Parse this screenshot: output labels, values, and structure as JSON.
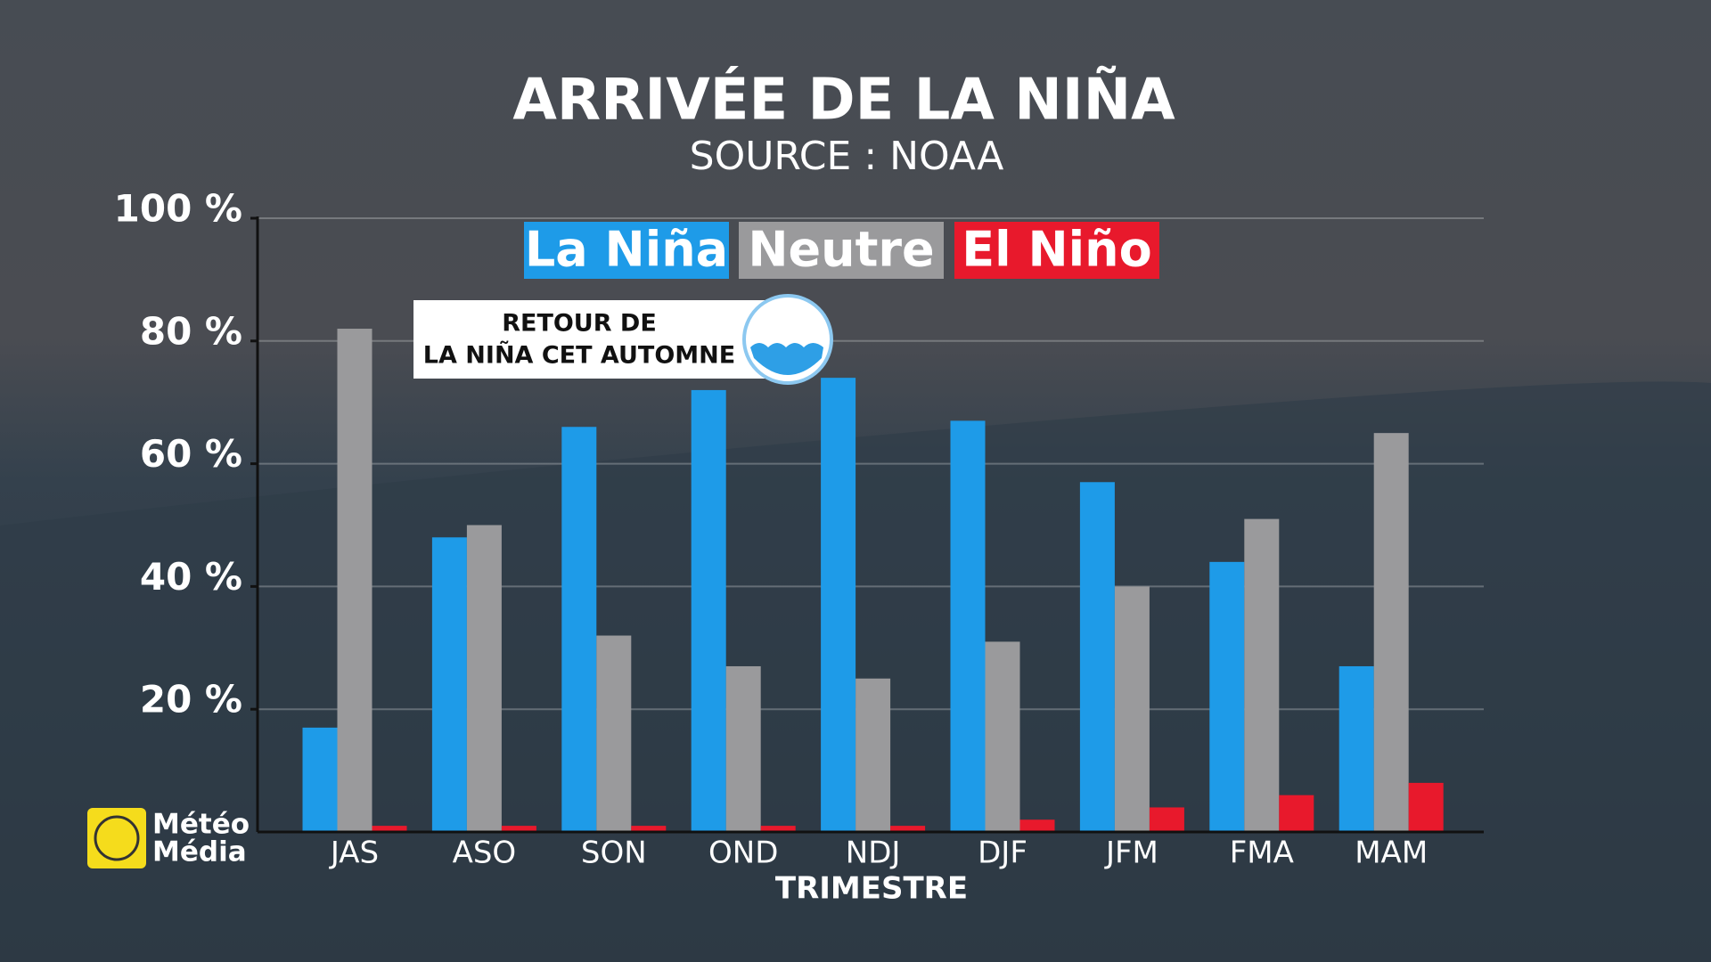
{
  "chart_data": {
    "type": "bar",
    "title": "ARRIVÉE DE LA NIÑA",
    "subtitle": "SOURCE : NOAA",
    "x_label": "TRIMESTRE",
    "annotation": [
      "RETOUR DE",
      "LA NIÑA CET AUTOMNE"
    ],
    "categories": [
      "JAS",
      "ASO",
      "SON",
      "OND",
      "NDJ",
      "DJF",
      "JFM",
      "FMA",
      "MAM"
    ],
    "series": [
      {
        "name": "La Niña",
        "color": "#1e9be8",
        "values": [
          17,
          48,
          66,
          72,
          74,
          67,
          57,
          44,
          27
        ]
      },
      {
        "name": "Neutre",
        "color": "#9a9a9c",
        "values": [
          82,
          50,
          32,
          27,
          25,
          31,
          40,
          51,
          65
        ]
      },
      {
        "name": "El Niño",
        "color": "#e8192c",
        "values": [
          1,
          1,
          1,
          1,
          1,
          2,
          4,
          6,
          8
        ]
      }
    ],
    "ylim": [
      0,
      100
    ],
    "yticks": [
      {
        "value": 20,
        "label": "20 %"
      },
      {
        "value": 40,
        "label": "40 %"
      },
      {
        "value": 60,
        "label": "60 %"
      },
      {
        "value": 80,
        "label": "80 %"
      },
      {
        "value": 100,
        "label": "100 %"
      }
    ],
    "grid": true,
    "legend": "top"
  },
  "logo": [
    "Météo",
    "Média"
  ]
}
